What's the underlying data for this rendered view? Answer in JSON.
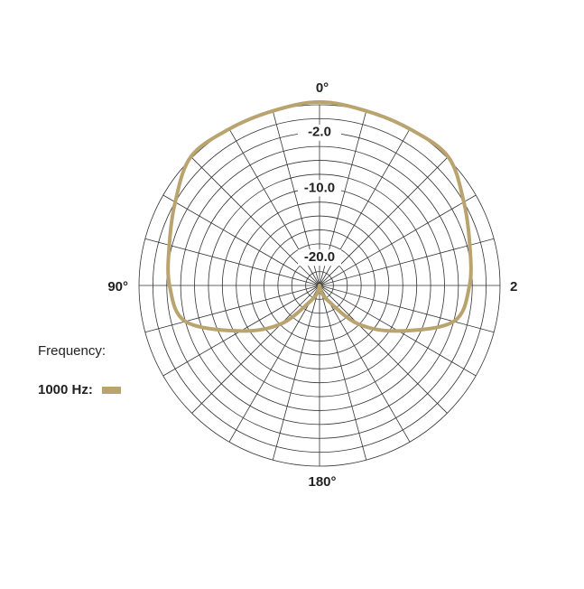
{
  "chart_data": {
    "type": "polar",
    "theta": [
      0,
      15,
      30,
      45,
      60,
      75,
      90,
      105,
      120,
      135,
      150,
      165,
      180,
      195,
      210,
      225,
      240,
      255,
      270,
      285,
      300,
      315,
      330,
      345
    ],
    "theta_labels": [
      "0°",
      "90°",
      "180°",
      "2"
    ],
    "rlim": [
      -24,
      2
    ],
    "rticks": [
      {
        "value": -2,
        "label": "-2.0"
      },
      {
        "value": -10,
        "label": "-10.0"
      },
      {
        "value": -20,
        "label": "-20.0"
      }
    ],
    "legend_title": "Frequency:",
    "series": [
      {
        "name": "1000 Hz:",
        "color": "#b9a36e",
        "values": [
          2.4,
          2.0,
          2.0,
          2.2,
          0.0,
          -1.6,
          -2.4,
          -4.0,
          -10.9,
          -16.2,
          -21.4,
          -23.0,
          -24,
          -23.0,
          -21.4,
          -16.2,
          -10.9,
          -4.0,
          -2.4,
          -1.6,
          0.0,
          2.2,
          2.0,
          2.0
        ]
      }
    ]
  }
}
